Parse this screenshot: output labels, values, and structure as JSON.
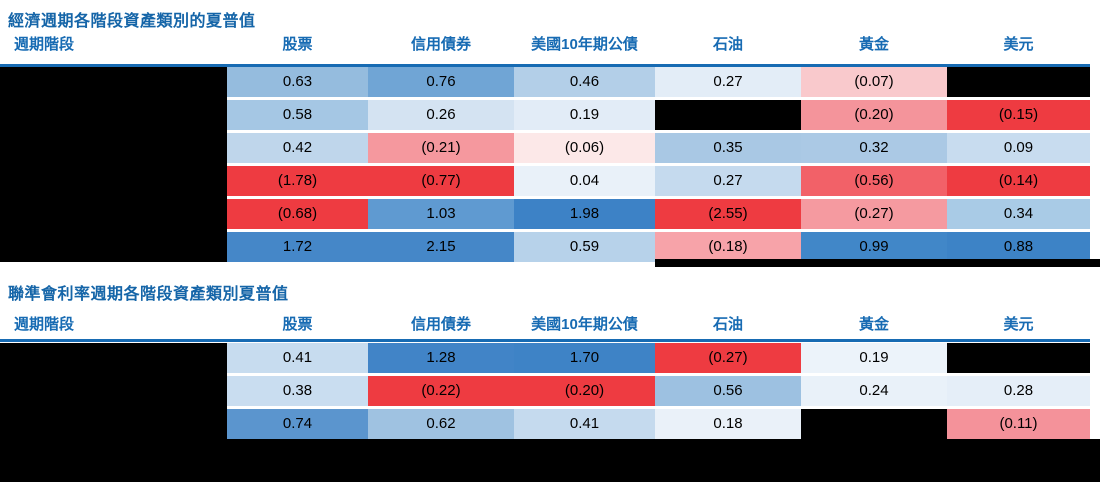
{
  "page": {
    "background": "#ffffff",
    "title_color": "#1565a8",
    "header_color": "#176bb3",
    "cell_text_color": "#000000",
    "redaction_color": "#000000",
    "positive_color_max": "#3d83c6",
    "negative_color_max": "#ee3b41"
  },
  "tables": [
    {
      "title": "經濟週期各階段資產類別的夏普值",
      "columns": [
        "週期階段",
        "股票",
        "信用債券",
        "美國10年期公債",
        "石油",
        "黃金",
        "美元"
      ],
      "rows": [
        {
          "label": "",
          "label_redacted": true,
          "cells": [
            {
              "text": "0.63",
              "color": "#95bcde"
            },
            {
              "text": "0.76",
              "color": "#70a5d5"
            },
            {
              "text": "0.46",
              "color": "#b3cfe8"
            },
            {
              "text": "0.27",
              "color": "#e3edf7"
            },
            {
              "text": "(0.07)",
              "color": "#f9c9cc"
            },
            {
              "text": "",
              "redacted": true
            }
          ]
        },
        {
          "label": "",
          "label_redacted": true,
          "cells": [
            {
              "text": "0.58",
              "color": "#a5c7e4"
            },
            {
              "text": "0.26",
              "color": "#d4e3f2"
            },
            {
              "text": "0.19",
              "color": "#e2ecf7"
            },
            {
              "text": "",
              "redacted": true
            },
            {
              "text": "(0.20)",
              "color": "#f4949b"
            },
            {
              "text": "(0.15)",
              "color": "#ee3b41"
            }
          ]
        },
        {
          "label": "",
          "label_redacted": true,
          "cells": [
            {
              "text": "0.42",
              "color": "#bfd6eb"
            },
            {
              "text": "(0.21)",
              "color": "#f5989e"
            },
            {
              "text": "(0.06)",
              "color": "#fce8e8"
            },
            {
              "text": "0.35",
              "color": "#a9c8e4"
            },
            {
              "text": "0.32",
              "color": "#abc9e5"
            },
            {
              "text": "0.09",
              "color": "#c8dcef"
            }
          ]
        },
        {
          "label": "",
          "label_redacted": true,
          "cells": [
            {
              "text": "(1.78)",
              "color": "#ee3b41"
            },
            {
              "text": "(0.77)",
              "color": "#ee3b41"
            },
            {
              "text": "0.04",
              "color": "#e9f1f9"
            },
            {
              "text": "0.27",
              "color": "#c5daee"
            },
            {
              "text": "(0.56)",
              "color": "#f26168"
            },
            {
              "text": "(0.14)",
              "color": "#ee3b41"
            }
          ]
        },
        {
          "label": "",
          "label_redacted": true,
          "cells": [
            {
              "text": "(0.68)",
              "color": "#ee3b41"
            },
            {
              "text": "1.03",
              "color": "#5f9ad1"
            },
            {
              "text": "1.98",
              "color": "#3d82c6"
            },
            {
              "text": "(2.55)",
              "color": "#ee3b41"
            },
            {
              "text": "(0.27)",
              "color": "#f59aa0"
            },
            {
              "text": "0.34",
              "color": "#a9cbe6"
            }
          ]
        },
        {
          "label": "",
          "label_redacted": true,
          "cells": [
            {
              "text": "1.72",
              "color": "#4587c8"
            },
            {
              "text": "2.15",
              "color": "#4587c8"
            },
            {
              "text": "0.59",
              "color": "#b7d2ea"
            },
            {
              "text": "(0.18)",
              "color": "#f7a3a9"
            },
            {
              "text": "0.99",
              "color": "#4187c8"
            },
            {
              "text": "0.88",
              "color": "#3d83c6"
            }
          ]
        }
      ]
    },
    {
      "title": "聯準會利率週期各階段資產類別夏普值",
      "columns": [
        "週期階段",
        "股票",
        "信用債券",
        "美國10年期公債",
        "石油",
        "黃金",
        "美元"
      ],
      "rows": [
        {
          "label": "",
          "label_redacted": true,
          "cells": [
            {
              "text": "0.41",
              "color": "#c7dcef"
            },
            {
              "text": "1.28",
              "color": "#4184c7"
            },
            {
              "text": "1.70",
              "color": "#3e83c6"
            },
            {
              "text": "(0.27)",
              "color": "#ee3b41"
            },
            {
              "text": "0.19",
              "color": "#ecf3fa"
            },
            {
              "text": "",
              "redacted": true
            }
          ]
        },
        {
          "label": "",
          "label_redacted": true,
          "cells": [
            {
              "text": "0.38",
              "color": "#c9ddf0"
            },
            {
              "text": "(0.22)",
              "color": "#ee3b41"
            },
            {
              "text": "(0.20)",
              "color": "#ee3b41"
            },
            {
              "text": "0.56",
              "color": "#9dc1e1"
            },
            {
              "text": "0.24",
              "color": "#e9f1f9"
            },
            {
              "text": "0.28",
              "color": "#e5eef8"
            }
          ]
        },
        {
          "label": "",
          "label_redacted": true,
          "cells": [
            {
              "text": "0.74",
              "color": "#5b95ce"
            },
            {
              "text": "0.62",
              "color": "#9fc2e1"
            },
            {
              "text": "0.41",
              "color": "#c5daee"
            },
            {
              "text": "0.18",
              "color": "#eaf1f9"
            },
            {
              "text": "",
              "redacted": true
            },
            {
              "text": "(0.11)",
              "color": "#f4929a"
            }
          ]
        }
      ]
    }
  ],
  "chart_data": [
    {
      "type": "heatmap",
      "title": "經濟週期各階段資產類別的夏普值",
      "columns": [
        "股票",
        "信用債券",
        "美國10年期公債",
        "石油",
        "黃金",
        "美元"
      ],
      "row_label_header": "週期階段",
      "row_labels_redacted": true,
      "values": [
        [
          0.63,
          0.76,
          0.46,
          0.27,
          -0.07,
          null
        ],
        [
          0.58,
          0.26,
          0.19,
          null,
          -0.2,
          -0.15
        ],
        [
          0.42,
          -0.21,
          -0.06,
          0.35,
          0.32,
          0.09
        ],
        [
          -1.78,
          -0.77,
          0.04,
          0.27,
          -0.56,
          -0.14
        ],
        [
          -0.68,
          1.03,
          1.98,
          -2.55,
          -0.27,
          0.34
        ],
        [
          1.72,
          2.15,
          0.59,
          -0.18,
          0.99,
          0.88
        ]
      ],
      "colormap": "diverging red (negative) to blue (positive), white near zero; null = redacted black cell",
      "negative_format": "parentheses"
    },
    {
      "type": "heatmap",
      "title": "聯準會利率週期各階段資產類別夏普值",
      "columns": [
        "股票",
        "信用債券",
        "美國10年期公債",
        "石油",
        "黃金",
        "美元"
      ],
      "row_label_header": "週期階段",
      "row_labels_redacted": true,
      "values": [
        [
          0.41,
          1.28,
          1.7,
          -0.27,
          0.19,
          null
        ],
        [
          0.38,
          -0.22,
          -0.2,
          0.56,
          0.24,
          0.28
        ],
        [
          0.74,
          0.62,
          0.41,
          0.18,
          null,
          -0.11
        ]
      ],
      "colormap": "diverging red (negative) to blue (positive), white near zero; null = redacted black cell",
      "negative_format": "parentheses"
    }
  ]
}
